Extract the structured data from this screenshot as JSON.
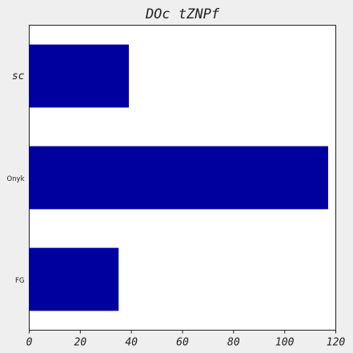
{
  "chart_data": {
    "type": "bar",
    "orientation": "horizontal",
    "title": "DOc tZNPf",
    "xlabel": "",
    "ylabel": "",
    "categories": [
      "sc",
      "Onyk",
      "FG"
    ],
    "values": [
      39,
      117,
      35
    ],
    "xlim": [
      0,
      120
    ],
    "xticks": [
      0,
      20,
      40,
      60,
      80,
      100,
      120
    ],
    "bar_color": "#00009f",
    "grid": false,
    "legend": "none"
  }
}
